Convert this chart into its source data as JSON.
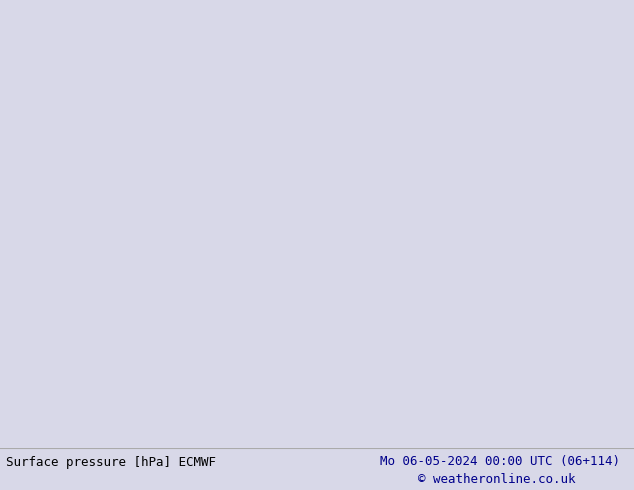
{
  "title_left": "Surface pressure [hPa] ECMWF",
  "title_right": "Mo 06-05-2024 00:00 UTC (06+114)",
  "copyright": "© weatheronline.co.uk",
  "bg_sea_color": "#d8d8e8",
  "land_color": "#c8eea0",
  "border_color": "#909090",
  "bottom_bar_color": "#e8e8e8",
  "isobar_blue": "#1414cc",
  "isobar_black": "#000000",
  "isobar_red": "#cc0000",
  "text_dark": "#000000",
  "text_blue": "#00008b",
  "font_size_label": 9,
  "extent": [
    -14.0,
    13.0,
    46.5,
    62.5
  ]
}
